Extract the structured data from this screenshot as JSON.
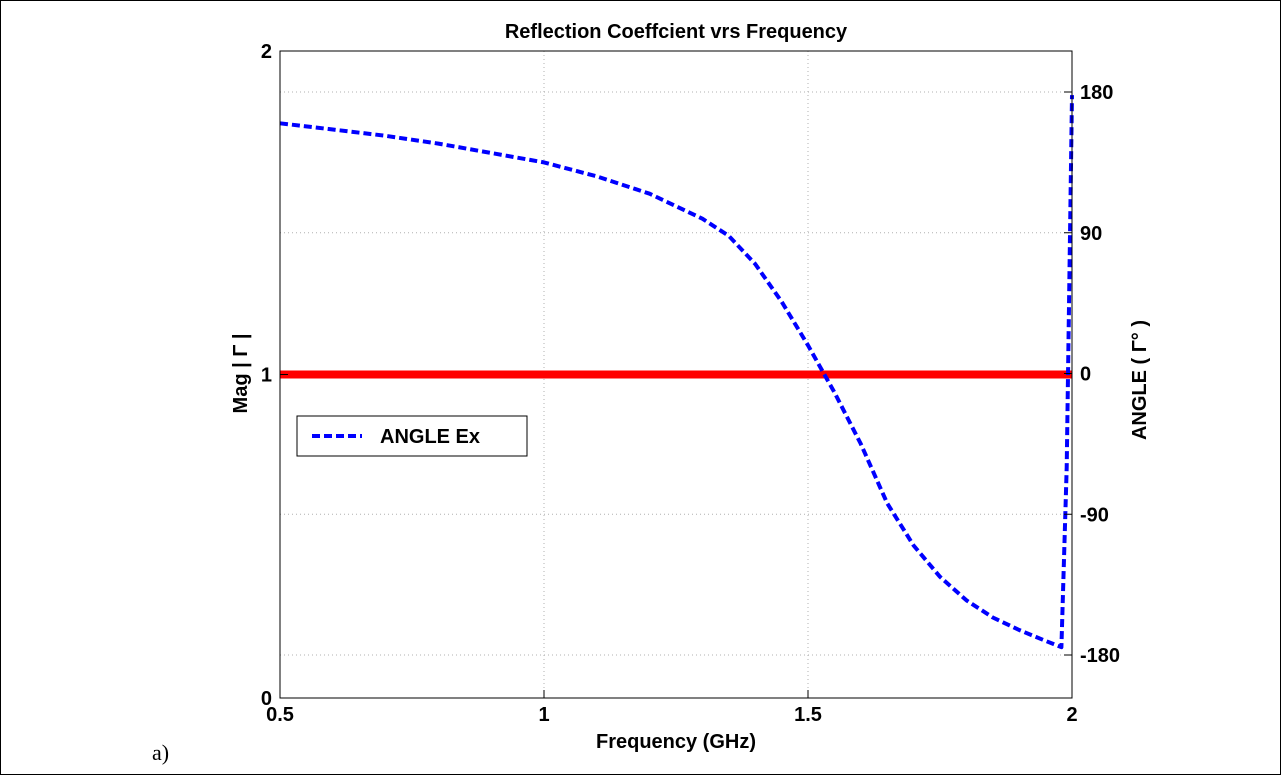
{
  "chart_data": {
    "type": "line",
    "title": "Reflection Coeffcient vrs Frequency",
    "xlabel": "Frequency (GHz)",
    "ylabel_left": "Mag | Γ |",
    "ylabel_right": "ANGLE ( Γ° )",
    "xlim": [
      0.5,
      2
    ],
    "ylim_left": [
      0,
      2
    ],
    "ylim_right": [
      -180,
      180
    ],
    "x_ticks": [
      0.5,
      1,
      1.5,
      2
    ],
    "x_tick_labels": [
      "0.5",
      "1",
      "1.5",
      "2"
    ],
    "y_left_ticks": [
      0,
      1,
      2
    ],
    "y_left_tick_labels": [
      "0",
      "1",
      "2"
    ],
    "y_right_ticks": [
      -180,
      -90,
      0,
      90,
      180
    ],
    "y_right_tick_labels": [
      "-180",
      "-90",
      "0",
      "90",
      "180"
    ],
    "grid": true,
    "legend_position": "middle-left",
    "series": [
      {
        "name": "",
        "axis": "left",
        "color": "#ff0000",
        "style": "solid",
        "x": [
          0.5,
          0.75,
          1.0,
          1.25,
          1.5,
          1.75,
          2.0
        ],
        "y": [
          1.0,
          1.0,
          1.0,
          1.0,
          1.0,
          1.0,
          1.0
        ]
      },
      {
        "name": "ANGLE Ex",
        "axis": "right",
        "color": "#0000ff",
        "style": "dashed",
        "x": [
          0.5,
          0.6,
          0.7,
          0.8,
          0.9,
          1.0,
          1.1,
          1.2,
          1.3,
          1.35,
          1.4,
          1.45,
          1.5,
          1.53,
          1.55,
          1.6,
          1.65,
          1.7,
          1.75,
          1.8,
          1.85,
          1.9,
          1.95,
          1.98,
          1.99,
          2.0
        ],
        "y": [
          160,
          156,
          152,
          147,
          141,
          135,
          126,
          115,
          99,
          88,
          70,
          46,
          18,
          0,
          -12,
          -45,
          -83,
          -110,
          -130,
          -145,
          -156,
          -164,
          -171,
          -175,
          -60,
          178
        ]
      }
    ]
  },
  "panel_label": "a)"
}
